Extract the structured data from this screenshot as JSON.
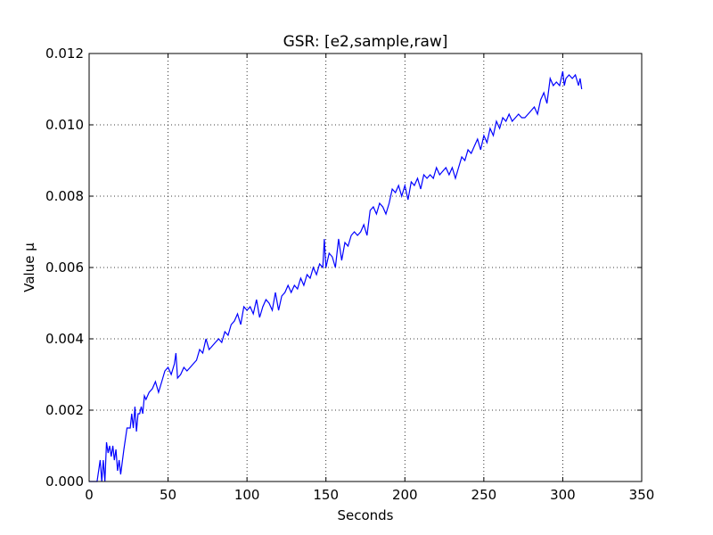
{
  "chart_data": {
    "type": "line",
    "title": "GSR: [e2,sample,raw]",
    "xlabel": "Seconds",
    "ylabel": "Value µ",
    "xlim": [
      0,
      350
    ],
    "ylim": [
      0,
      0.012
    ],
    "xticks": [
      "0",
      "50",
      "100",
      "150",
      "200",
      "250",
      "300",
      "350"
    ],
    "yticks": [
      "0.000",
      "0.002",
      "0.004",
      "0.006",
      "0.008",
      "0.010",
      "0.012"
    ],
    "grid": true,
    "line_color": "#0000ff",
    "series": [
      {
        "x": [
          0,
          5,
          7,
          8,
          9,
          10,
          11,
          12,
          13,
          14,
          15,
          16,
          17,
          18,
          19,
          20,
          22,
          24,
          25,
          26,
          27,
          28,
          29,
          30,
          31,
          32,
          33,
          34,
          35,
          36,
          38,
          40,
          42,
          44,
          46,
          48,
          50,
          52,
          54,
          55,
          56,
          58,
          60,
          62,
          64,
          66,
          68,
          70,
          72,
          74,
          76,
          78,
          80,
          82,
          84,
          86,
          88,
          90,
          92,
          94,
          96,
          98,
          100,
          102,
          104,
          106,
          108,
          110,
          112,
          114,
          116,
          118,
          120,
          122,
          124,
          126,
          128,
          130,
          132,
          134,
          136,
          138,
          140,
          142,
          144,
          146,
          148,
          149,
          150,
          152,
          154,
          156,
          158,
          160,
          162,
          164,
          166,
          168,
          170,
          172,
          174,
          176,
          178,
          180,
          182,
          184,
          186,
          188,
          190,
          192,
          194,
          196,
          198,
          200,
          202,
          204,
          206,
          208,
          210,
          212,
          214,
          216,
          218,
          220,
          222,
          224,
          226,
          228,
          230,
          232,
          234,
          236,
          238,
          240,
          242,
          244,
          246,
          248,
          250,
          252,
          254,
          256,
          258,
          260,
          262,
          264,
          266,
          268,
          270,
          272,
          274,
          276,
          278,
          280,
          282,
          284,
          286,
          288,
          290,
          292,
          294,
          296,
          298,
          300,
          301,
          302,
          304,
          306,
          308,
          310,
          311,
          312
        ],
        "values": [
          0.0,
          0.0,
          0.0006,
          0.0,
          0.0006,
          0.0,
          0.0011,
          0.0008,
          0.001,
          0.0007,
          0.001,
          0.0006,
          0.0009,
          0.0003,
          0.0006,
          0.0002,
          0.0009,
          0.0015,
          0.0015,
          0.0015,
          0.0019,
          0.0015,
          0.0021,
          0.0014,
          0.0019,
          0.0019,
          0.0021,
          0.0019,
          0.0024,
          0.0023,
          0.0025,
          0.0026,
          0.0028,
          0.0025,
          0.0028,
          0.0031,
          0.0032,
          0.003,
          0.0033,
          0.0036,
          0.0029,
          0.003,
          0.0032,
          0.0031,
          0.0032,
          0.0033,
          0.0034,
          0.0037,
          0.0036,
          0.004,
          0.0037,
          0.0038,
          0.0039,
          0.004,
          0.0039,
          0.0042,
          0.0041,
          0.0044,
          0.0045,
          0.0047,
          0.0044,
          0.0049,
          0.0048,
          0.0049,
          0.0047,
          0.0051,
          0.0046,
          0.0049,
          0.0051,
          0.005,
          0.0048,
          0.0053,
          0.0048,
          0.0052,
          0.0053,
          0.0055,
          0.0053,
          0.0055,
          0.0054,
          0.0057,
          0.0055,
          0.0058,
          0.0057,
          0.006,
          0.0058,
          0.0061,
          0.006,
          0.0068,
          0.006,
          0.0064,
          0.0063,
          0.006,
          0.0068,
          0.0062,
          0.0067,
          0.0066,
          0.0069,
          0.007,
          0.0069,
          0.007,
          0.0072,
          0.0069,
          0.0076,
          0.0077,
          0.0075,
          0.0078,
          0.0077,
          0.0075,
          0.0078,
          0.0082,
          0.0081,
          0.0083,
          0.008,
          0.0083,
          0.0079,
          0.0084,
          0.0083,
          0.0085,
          0.0082,
          0.0086,
          0.0085,
          0.0086,
          0.0085,
          0.0088,
          0.0086,
          0.0087,
          0.0088,
          0.0086,
          0.0088,
          0.0085,
          0.0088,
          0.0091,
          0.009,
          0.0093,
          0.0092,
          0.0094,
          0.0096,
          0.0093,
          0.0097,
          0.0095,
          0.0099,
          0.0097,
          0.0101,
          0.0099,
          0.0102,
          0.0101,
          0.0103,
          0.0101,
          0.0102,
          0.0103,
          0.0102,
          0.0102,
          0.0103,
          0.0104,
          0.0105,
          0.0103,
          0.0107,
          0.0109,
          0.0106,
          0.0113,
          0.0111,
          0.0112,
          0.0111,
          0.0115,
          0.0111,
          0.0113,
          0.0114,
          0.0113,
          0.0114,
          0.0111,
          0.0113,
          0.011
        ]
      }
    ]
  }
}
